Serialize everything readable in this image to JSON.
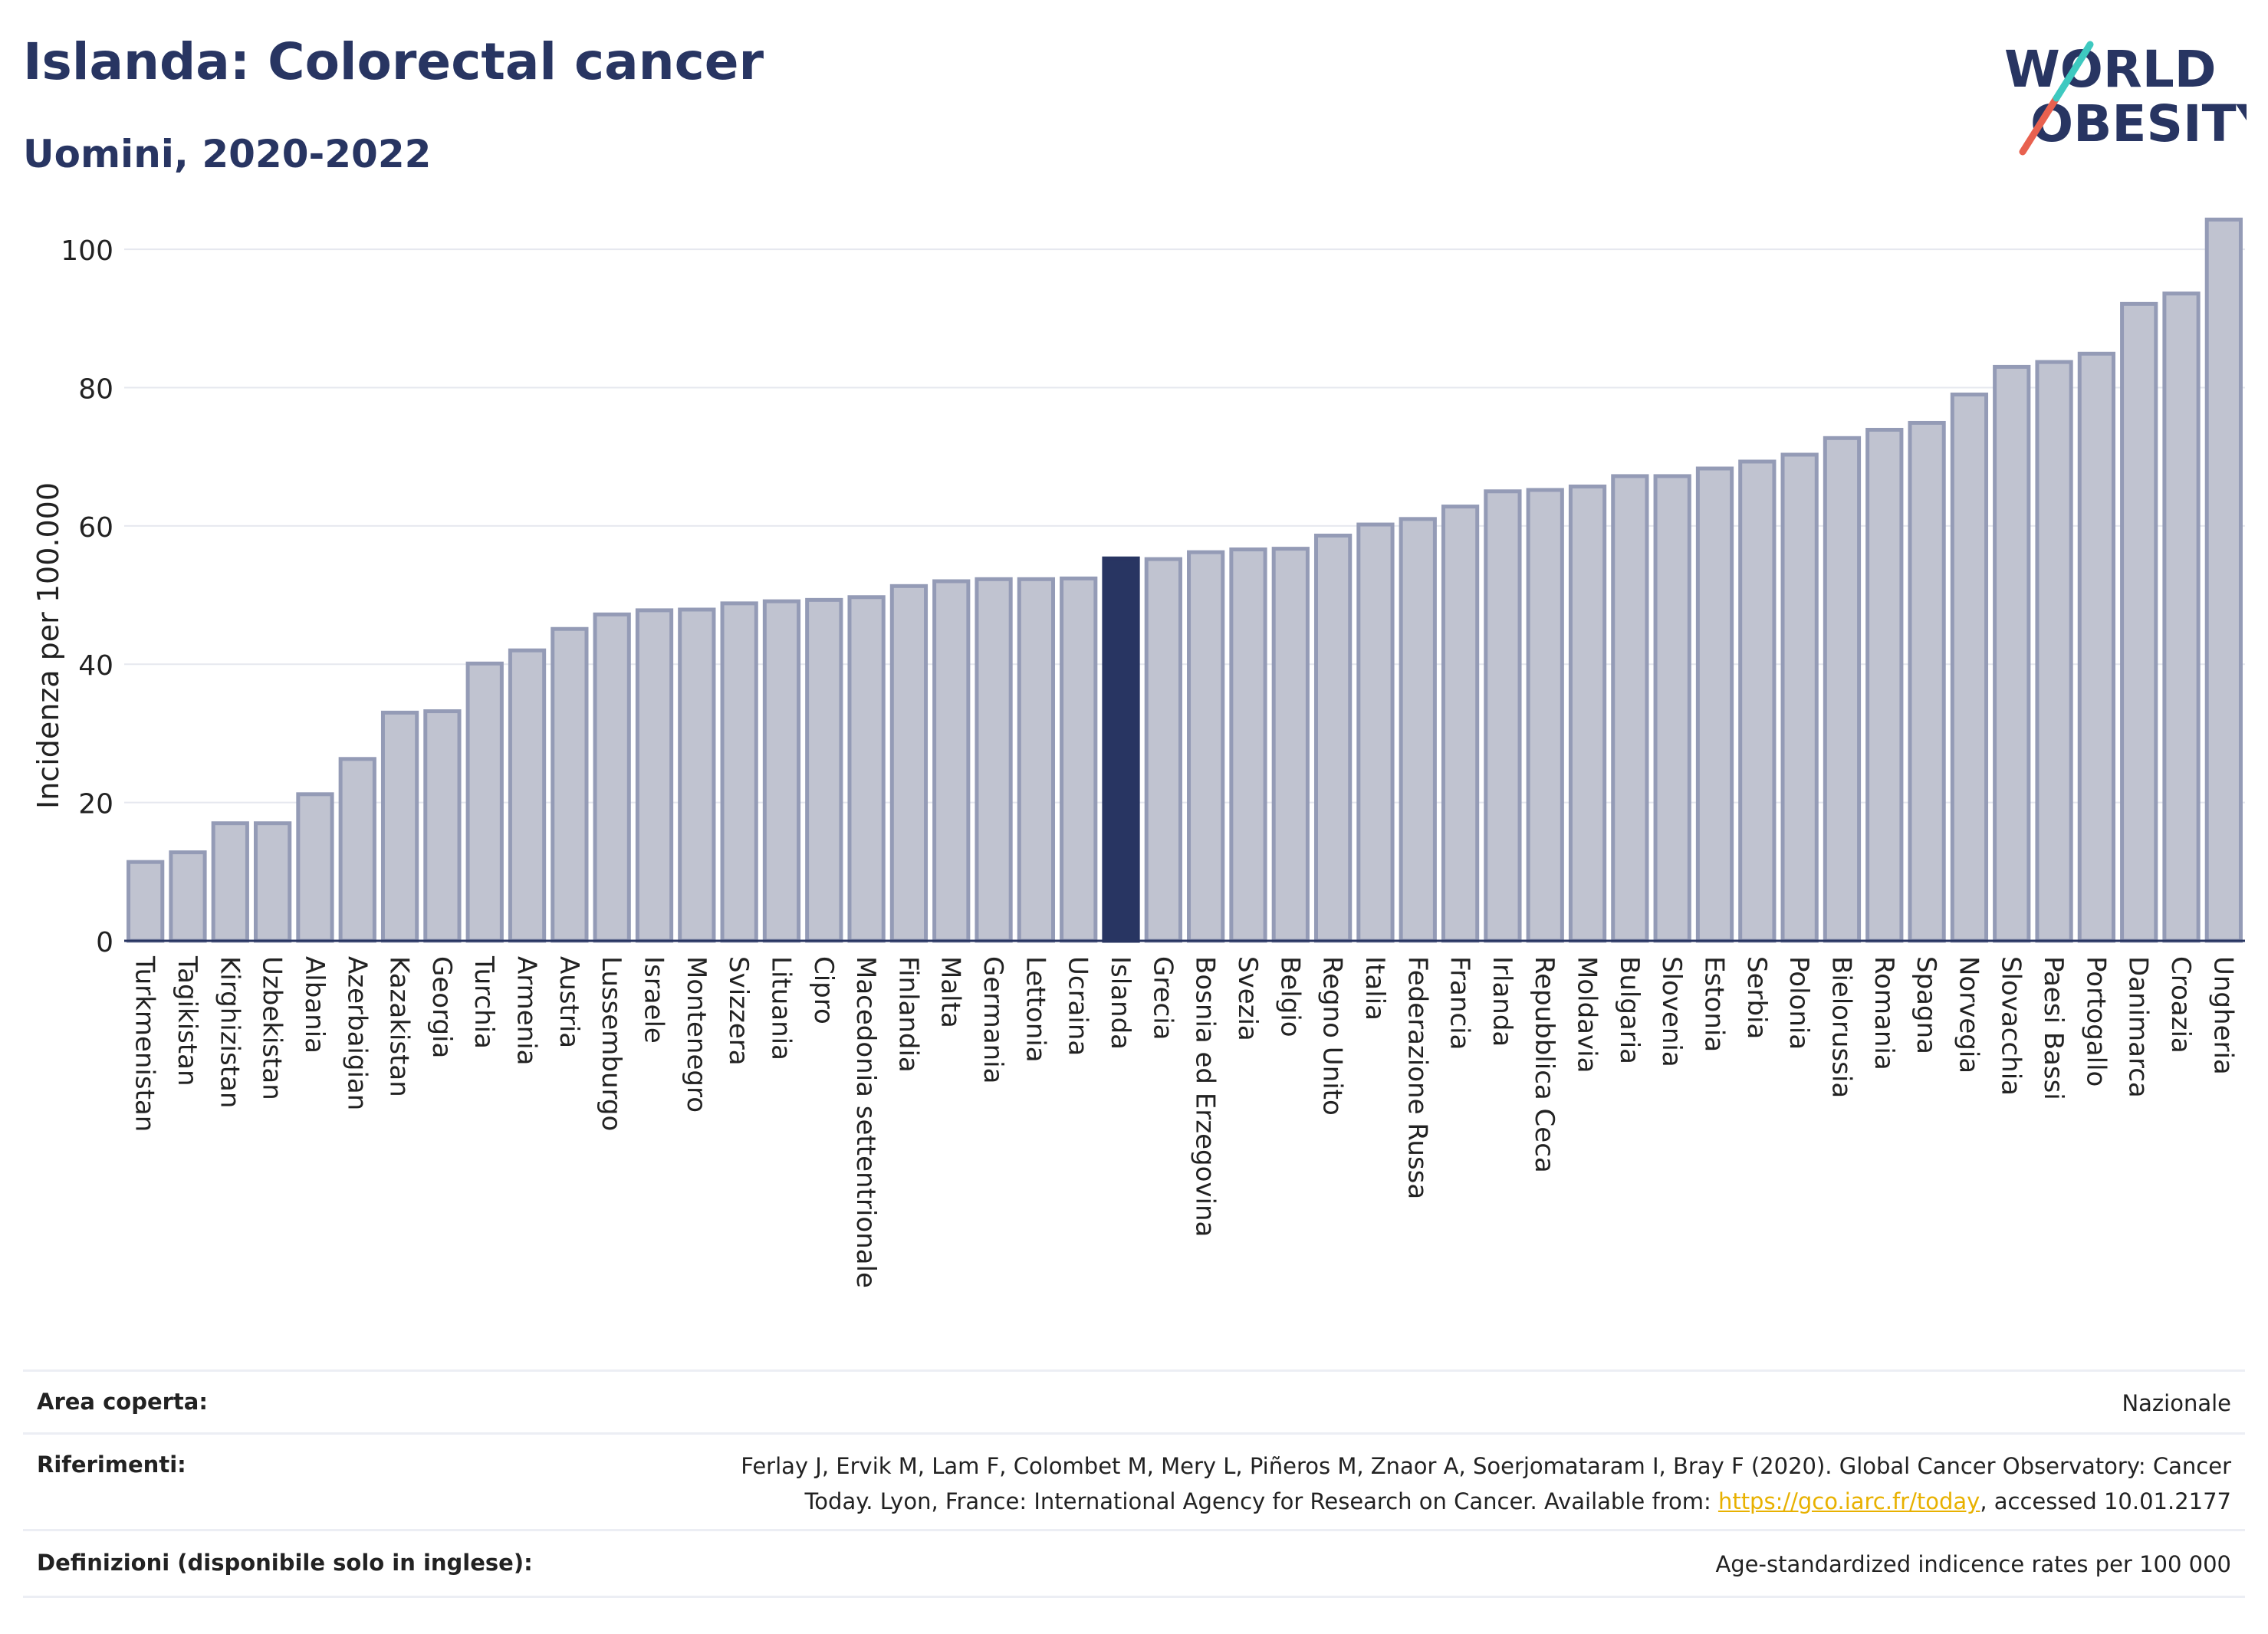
{
  "header": {
    "title": "Islanda: Colorectal cancer",
    "subtitle": "Uomini, 2020-2022"
  },
  "logo": {
    "line1": "WORLD",
    "line2": "OBESITY",
    "name": "world-obesity-logo"
  },
  "colors": {
    "brand_navy": "#283562",
    "bar_fill": "#c0c3d0",
    "bar_stroke": "#949bb6",
    "highlight": "#283562",
    "logo_red": "#e8614f",
    "logo_teal": "#3ec9c0",
    "link": "#e8b100"
  },
  "chart_data": {
    "type": "bar",
    "ylabel": "Incidenza per 100.000",
    "xlabel": "",
    "ylim": [
      0,
      105
    ],
    "yticks": [
      0,
      20,
      40,
      60,
      80,
      100
    ],
    "grid": true,
    "highlight_category": "Islanda",
    "categories": [
      "Turkmenistan",
      "Tagikistan",
      "Kirghizistan",
      "Uzbekistan",
      "Albania",
      "Azerbaigian",
      "Kazakistan",
      "Georgia",
      "Turchia",
      "Armenia",
      "Austria",
      "Lussemburgo",
      "Israele",
      "Montenegro",
      "Svizzera",
      "Lituania",
      "Cipro",
      "Macedonia settentrionale",
      "Finlandia",
      "Malta",
      "Germania",
      "Lettonia",
      "Ucraina",
      "Islanda",
      "Grecia",
      "Bosnia ed Erzegovina",
      "Svezia",
      "Belgio",
      "Regno Unito",
      "Italia",
      "Federazione Russa",
      "Francia",
      "Irlanda",
      "Repubblica Ceca",
      "Moldavia",
      "Bulgaria",
      "Slovenia",
      "Estonia",
      "Serbia",
      "Polonia",
      "Bielorussia",
      "Romania",
      "Spagna",
      "Norvegia",
      "Slovacchia",
      "Paesi Bassi",
      "Portogallo",
      "Danimarca",
      "Croazia",
      "Ungheria"
    ],
    "values": [
      11.4,
      12.8,
      17.0,
      17.0,
      21.2,
      26.3,
      33.0,
      33.2,
      40.1,
      42.0,
      45.1,
      47.2,
      47.8,
      47.9,
      48.8,
      49.1,
      49.3,
      49.7,
      51.3,
      52.0,
      52.3,
      52.3,
      52.4,
      55.3,
      55.2,
      56.2,
      56.6,
      56.7,
      58.6,
      60.2,
      61.0,
      62.8,
      65.0,
      65.2,
      65.7,
      67.2,
      67.2,
      68.3,
      69.3,
      70.3,
      72.7,
      73.9,
      74.9,
      79.0,
      83.0,
      83.7,
      84.9,
      92.1,
      93.6,
      104.3
    ]
  },
  "info": {
    "area_label": "Area coperta:",
    "area_value": "Nazionale",
    "refs_label": "Riferimenti:",
    "refs_line1": "Ferlay J, Ervik M, Lam F, Colombet M, Mery L, Piñeros M, Znaor A, Soerjomataram I, Bray F (2020). Global Cancer Observatory: Cancer",
    "refs_line2_pre": "Today. Lyon, France: International Agency for Research on Cancer. Available from: ",
    "refs_link": "https://gco.iarc.fr/today",
    "refs_line2_post": ", accessed 10.01.2177",
    "defs_label": "Definizioni (disponibile solo in inglese):",
    "defs_value": "Age-standardized indicence rates per 100 000"
  }
}
